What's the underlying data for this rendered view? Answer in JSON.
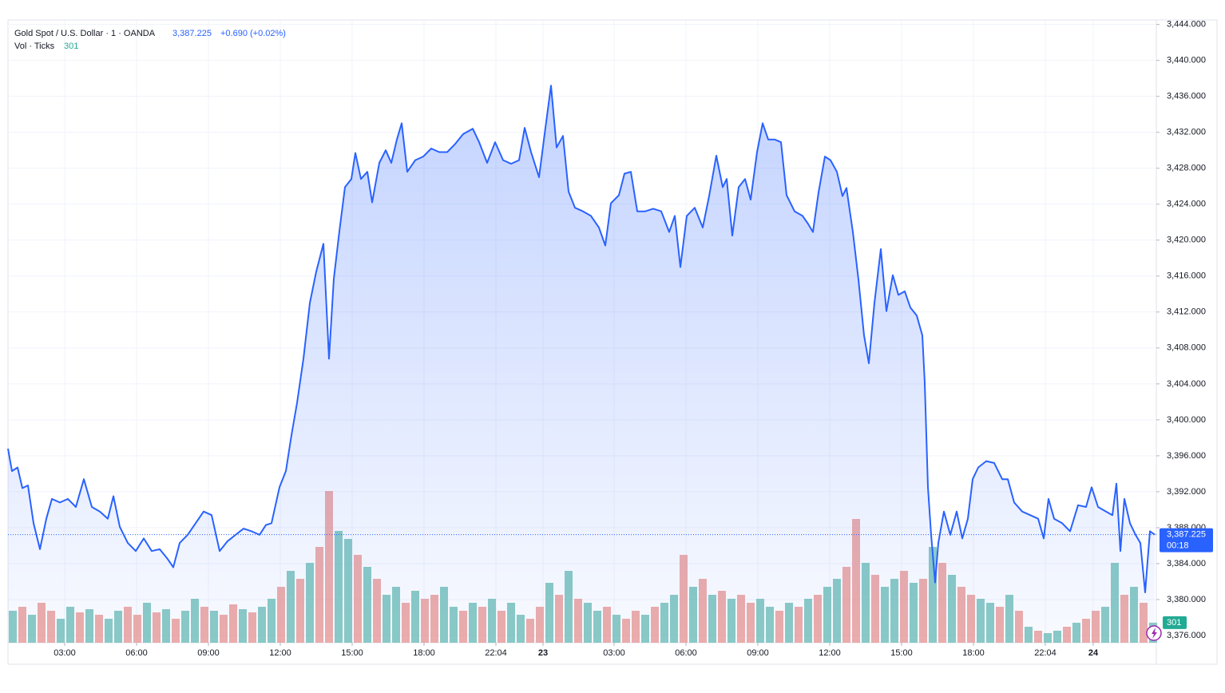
{
  "chart_data": {
    "type": "area",
    "title": "Gold Spot / U.S. Dollar · 1 · OANDA",
    "last_price": {
      "value": 3387.225,
      "label": "3,387.225"
    },
    "change_label": "+0.690 (+0.02%)",
    "countdown": "00:18",
    "volume_title": "Vol · Ticks",
    "series": [
      {
        "color": "#2962ff",
        "x": [
          20,
          30,
          44,
          56,
          70,
          84,
          100,
          116,
          130,
          150,
          170,
          190,
          210,
          230,
          250,
          270,
          284,
          300,
          320,
          340,
          360,
          380,
          400,
          420,
          434,
          450,
          470,
          490,
          510,
          530,
          550,
          570,
          590,
          610,
          630,
          650,
          666,
          680,
          700,
          716,
          730,
          744,
          760,
          776,
          792,
          810,
          824,
          836,
          850,
          864,
          880,
          890,
          904,
          920,
          932,
          950,
          966,
          980,
          994,
          1006,
          1020,
          1040,
          1060,
          1080,
          1100,
          1120,
          1140,
          1160,
          1184,
          1200,
          1220,
          1240,
          1260,
          1280,
          1300,
          1314,
          1330,
          1350,
          1366,
          1380,
          1394,
          1410,
          1424,
          1440,
          1460,
          1480,
          1500,
          1516,
          1530,
          1550,
          1564,
          1580,
          1596,
          1616,
          1636,
          1656,
          1676,
          1690,
          1704,
          1720,
          1740,
          1760,
          1776,
          1794,
          1810,
          1820,
          1834,
          1850,
          1866,
          1880,
          1896,
          1910,
          1924,
          1940,
          1956,
          1970,
          1990,
          2010,
          2024,
          2036,
          2050,
          2066,
          2080,
          2096,
          2110,
          2120,
          2136,
          2150,
          2164,
          2176,
          2190,
          2206,
          2220,
          2236,
          2250,
          2266,
          2280,
          2296,
          2310,
          2316,
          2324,
          2332,
          2342,
          2350,
          2364,
          2380,
          2396,
          2410,
          2424,
          2436,
          2450,
          2470,
          2490,
          2510,
          2524,
          2540,
          2560,
          2580,
          2600,
          2614,
          2626,
          2640,
          2660,
          2680,
          2700,
          2720,
          2734,
          2750,
          2770,
          2786,
          2796,
          2806,
          2816,
          2830,
          2844,
          2856,
          2868,
          2880,
          2892
        ],
        "values": [
          3396.8,
          3394.3,
          3394.7,
          3392.4,
          3392.7,
          3388.5,
          3385.6,
          3389.0,
          3391.2,
          3390.8,
          3391.2,
          3390.3,
          3393.4,
          3390.3,
          3389.8,
          3389.0,
          3391.5,
          3388.1,
          3386.3,
          3385.4,
          3386.8,
          3385.4,
          3385.6,
          3384.5,
          3383.6,
          3386.3,
          3387.2,
          3388.5,
          3389.8,
          3389.4,
          3385.4,
          3386.5,
          3387.2,
          3387.9,
          3387.6,
          3387.2,
          3388.3,
          3388.5,
          3392.5,
          3394.3,
          3398.3,
          3401.9,
          3406.8,
          3413.0,
          3416.5,
          3419.6,
          3406.8,
          3415.7,
          3421.0,
          3425.9,
          3426.8,
          3429.7,
          3426.8,
          3427.6,
          3424.2,
          3428.6,
          3430.0,
          3428.6,
          3431.2,
          3433.0,
          3427.6,
          3428.9,
          3429.3,
          3430.2,
          3429.8,
          3429.8,
          3430.7,
          3431.8,
          3432.4,
          3430.9,
          3428.6,
          3430.9,
          3428.9,
          3428.5,
          3428.9,
          3432.5,
          3429.8,
          3427.0,
          3432.5,
          3437.2,
          3430.3,
          3431.6,
          3425.4,
          3423.6,
          3423.2,
          3422.7,
          3421.4,
          3419.4,
          3424.1,
          3425.0,
          3427.4,
          3427.6,
          3423.2,
          3423.2,
          3423.5,
          3423.2,
          3420.9,
          3422.7,
          3417.0,
          3422.7,
          3423.6,
          3421.4,
          3424.9,
          3429.4,
          3425.9,
          3426.8,
          3420.5,
          3425.9,
          3426.8,
          3424.5,
          3429.8,
          3433.0,
          3431.2,
          3431.2,
          3430.9,
          3425.0,
          3423.2,
          3422.7,
          3421.8,
          3420.9,
          3425.3,
          3429.3,
          3428.9,
          3427.6,
          3424.9,
          3425.8,
          3420.9,
          3415.6,
          3409.4,
          3406.3,
          3413.0,
          3419.0,
          3412.1,
          3416.1,
          3413.9,
          3414.3,
          3412.5,
          3411.6,
          3409.4,
          3404.1,
          3392.5,
          3387.2,
          3381.9,
          3386.3,
          3389.8,
          3387.2,
          3389.8,
          3386.8,
          3389.0,
          3393.4,
          3394.7,
          3395.4,
          3395.2,
          3393.4,
          3393.4,
          3390.8,
          3389.8,
          3389.4,
          3389.0,
          3386.8,
          3391.2,
          3389.0,
          3388.5,
          3387.6,
          3390.5,
          3390.3,
          3392.5,
          3390.3,
          3389.8,
          3389.4,
          3392.9,
          3385.4,
          3391.2,
          3388.5,
          3387.2,
          3386.3,
          3380.8,
          3387.6,
          3387.225
        ]
      }
    ],
    "volume": {
      "x": [
        32,
        56,
        80,
        104,
        128,
        152,
        176,
        200,
        224,
        248,
        272,
        296,
        320,
        344,
        368,
        392,
        416,
        440,
        464,
        488,
        512,
        536,
        560,
        584,
        608,
        632,
        656,
        680,
        704,
        728,
        752,
        776,
        800,
        824,
        848,
        872,
        896,
        920,
        944,
        968,
        992,
        1016,
        1040,
        1064,
        1088,
        1112,
        1136,
        1160,
        1184,
        1208,
        1232,
        1256,
        1280,
        1304,
        1328,
        1352,
        1376,
        1400,
        1424,
        1448,
        1472,
        1496,
        1520,
        1544,
        1568,
        1592,
        1616,
        1640,
        1664,
        1688,
        1712,
        1736,
        1760,
        1784,
        1808,
        1832,
        1856,
        1880,
        1904,
        1928,
        1952,
        1976,
        2000,
        2024,
        2048,
        2072,
        2096,
        2120,
        2144,
        2168,
        2192,
        2216,
        2240,
        2264,
        2288,
        2312,
        2336,
        2360,
        2384,
        2408,
        2432,
        2456,
        2480,
        2504,
        2528,
        2552,
        2576,
        2600,
        2624,
        2648,
        2672,
        2696,
        2720,
        2744,
        2768,
        2792,
        2816,
        2840,
        2864,
        2888
      ],
      "values": [
        480,
        540,
        420,
        600,
        480,
        360,
        540,
        456,
        504,
        420,
        360,
        480,
        540,
        420,
        600,
        456,
        504,
        360,
        480,
        660,
        540,
        480,
        420,
        576,
        504,
        456,
        540,
        660,
        840,
        1080,
        960,
        1200,
        1440,
        2280,
        1680,
        1560,
        1320,
        1140,
        960,
        720,
        840,
        600,
        780,
        660,
        720,
        840,
        540,
        480,
        600,
        540,
        660,
        480,
        600,
        420,
        360,
        540,
        900,
        720,
        1080,
        660,
        600,
        480,
        540,
        420,
        360,
        480,
        420,
        540,
        600,
        720,
        1320,
        840,
        960,
        720,
        780,
        660,
        720,
        600,
        660,
        540,
        480,
        600,
        540,
        660,
        720,
        840,
        960,
        1140,
        1860,
        1200,
        1020,
        840,
        960,
        1080,
        900,
        960,
        1440,
        1200,
        1020,
        840,
        720,
        660,
        600,
        540,
        720,
        480,
        240,
        180,
        144,
        180,
        240,
        300,
        360,
        480,
        540,
        1200,
        720,
        840,
        600,
        301
      ],
      "colors": [
        "#6fbfb5",
        "#ec9a94",
        "#6fbfb5",
        "#ec9a94",
        "#ec9a94",
        "#6fbfb5",
        "#6fbfb5",
        "#ec9a94",
        "#6fbfb5",
        "#ec9a94",
        "#6fbfb5",
        "#6fbfb5",
        "#ec9a94",
        "#ec9a94",
        "#6fbfb5",
        "#ec9a94",
        "#6fbfb5",
        "#ec9a94",
        "#6fbfb5",
        "#6fbfb5",
        "#ec9a94",
        "#6fbfb5",
        "#ec9a94",
        "#ec9a94",
        "#6fbfb5",
        "#ec9a94",
        "#6fbfb5",
        "#6fbfb5",
        "#ec9a94",
        "#6fbfb5",
        "#ec9a94",
        "#6fbfb5",
        "#ec9a94",
        "#ec9a94",
        "#6fbfb5",
        "#6fbfb5",
        "#ec9a94",
        "#6fbfb5",
        "#ec9a94",
        "#6fbfb5",
        "#6fbfb5",
        "#ec9a94",
        "#6fbfb5",
        "#ec9a94",
        "#ec9a94",
        "#6fbfb5",
        "#6fbfb5",
        "#ec9a94",
        "#6fbfb5",
        "#ec9a94",
        "#6fbfb5",
        "#ec9a94",
        "#6fbfb5",
        "#6fbfb5",
        "#ec9a94",
        "#ec9a94",
        "#6fbfb5",
        "#ec9a94",
        "#6fbfb5",
        "#ec9a94",
        "#6fbfb5",
        "#6fbfb5",
        "#ec9a94",
        "#6fbfb5",
        "#ec9a94",
        "#ec9a94",
        "#6fbfb5",
        "#ec9a94",
        "#6fbfb5",
        "#6fbfb5",
        "#ec9a94",
        "#6fbfb5",
        "#ec9a94",
        "#6fbfb5",
        "#ec9a94",
        "#6fbfb5",
        "#ec9a94",
        "#ec9a94",
        "#6fbfb5",
        "#6fbfb5",
        "#ec9a94",
        "#6fbfb5",
        "#ec9a94",
        "#6fbfb5",
        "#ec9a94",
        "#6fbfb5",
        "#6fbfb5",
        "#ec9a94",
        "#ec9a94",
        "#6fbfb5",
        "#ec9a94",
        "#6fbfb5",
        "#6fbfb5",
        "#ec9a94",
        "#6fbfb5",
        "#ec9a94",
        "#6fbfb5",
        "#ec9a94",
        "#6fbfb5",
        "#ec9a94",
        "#ec9a94",
        "#6fbfb5",
        "#6fbfb5",
        "#ec9a94",
        "#6fbfb5",
        "#ec9a94",
        "#6fbfb5",
        "#ec9a94",
        "#6fbfb5",
        "#6fbfb5",
        "#ec9a94",
        "#6fbfb5",
        "#ec9a94",
        "#ec9a94",
        "#6fbfb5",
        "#6fbfb5",
        "#ec9a94",
        "#6fbfb5",
        "#ec9a94",
        "#6fbfb5"
      ],
      "ylim": [
        0,
        9360
      ]
    },
    "xlim": [
      20,
      2896
    ],
    "xticks": [
      {
        "value": 162,
        "label": "03:00"
      },
      {
        "value": 342,
        "label": "06:00"
      },
      {
        "value": 522,
        "label": "09:00"
      },
      {
        "value": 702,
        "label": "12:00"
      },
      {
        "value": 882,
        "label": "15:00"
      },
      {
        "value": 1062,
        "label": "18:00"
      },
      {
        "value": 1242,
        "label": "22:04"
      },
      {
        "value": 1360,
        "label": "23"
      },
      {
        "value": 1538,
        "label": "03:00"
      },
      {
        "value": 1718,
        "label": "06:00"
      },
      {
        "value": 1898,
        "label": "09:00"
      },
      {
        "value": 2078,
        "label": "12:00"
      },
      {
        "value": 2258,
        "label": "15:00"
      },
      {
        "value": 2438,
        "label": "18:00"
      },
      {
        "value": 2618,
        "label": "22:04"
      },
      {
        "value": 2738,
        "label": "24"
      }
    ],
    "ylim": [
      3375.2,
      3444.5
    ],
    "yticks": [
      {
        "value": 3376,
        "label": "3,376.000"
      },
      {
        "value": 3380,
        "label": "3,380.000"
      },
      {
        "value": 3384,
        "label": "3,384.000"
      },
      {
        "value": 3388,
        "label": "3,388.000"
      },
      {
        "value": 3392,
        "label": "3,392.000"
      },
      {
        "value": 3396,
        "label": "3,396.000"
      },
      {
        "value": 3400,
        "label": "3,400.000"
      },
      {
        "value": 3404,
        "label": "3,404.000"
      },
      {
        "value": 3408,
        "label": "3,408.000"
      },
      {
        "value": 3412,
        "label": "3,412.000"
      },
      {
        "value": 3416,
        "label": "3,416.000"
      },
      {
        "value": 3420,
        "label": "3,420.000"
      },
      {
        "value": 3424,
        "label": "3,424.000"
      },
      {
        "value": 3428,
        "label": "3,428.000"
      },
      {
        "value": 3432,
        "label": "3,432.000"
      },
      {
        "value": 3436,
        "label": "3,436.000"
      },
      {
        "value": 3440,
        "label": "3,440.000"
      },
      {
        "value": 3444,
        "label": "3,444.000"
      }
    ],
    "grid": true
  }
}
